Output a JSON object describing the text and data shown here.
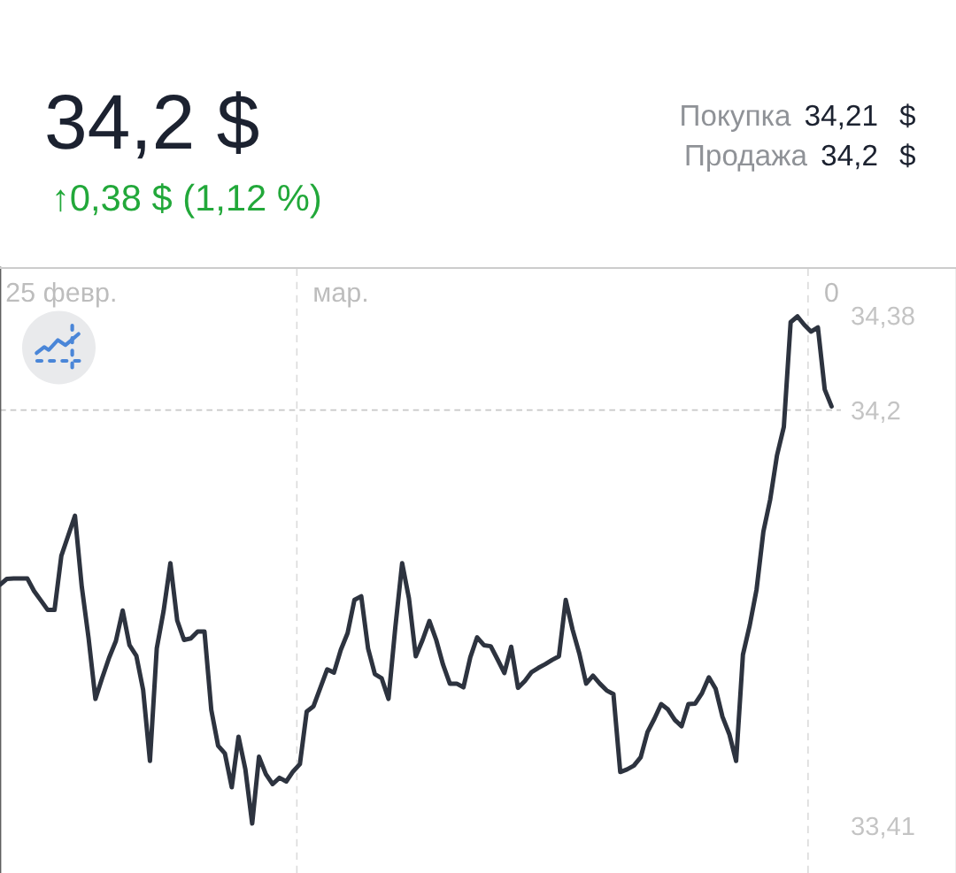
{
  "chart_data": {
    "type": "line",
    "title": "34,2 $",
    "subtitle": "↑0,38 $ (1,12 %)",
    "annotations": [
      "Покупка 34,21 $",
      "Продажа 34,2 $"
    ],
    "categories": [
      null,
      null,
      null,
      null,
      null,
      null,
      null,
      null,
      null,
      "25 февр.",
      null,
      null,
      null,
      null,
      null,
      null,
      null,
      null,
      null,
      null,
      null,
      null,
      null,
      null,
      null,
      null,
      null,
      null,
      null,
      null,
      null,
      null,
      null,
      null,
      null,
      null,
      null,
      null,
      null,
      null,
      null,
      null,
      null,
      null,
      null,
      null,
      null,
      null,
      null,
      null,
      "мар.",
      null,
      null,
      null,
      null,
      null,
      null,
      null,
      null,
      null,
      null,
      null,
      null,
      null,
      null,
      null,
      null,
      null,
      null,
      null,
      null,
      null,
      null,
      null,
      null,
      null,
      null,
      null,
      null,
      null,
      null,
      null,
      null,
      null,
      null,
      null,
      null,
      null,
      null,
      null,
      null,
      null,
      null,
      null,
      null,
      null,
      null,
      null,
      null,
      null,
      null,
      null,
      null,
      null,
      null,
      null,
      null,
      null,
      null,
      null,
      null,
      null,
      null,
      null,
      null,
      null,
      null,
      null,
      null,
      null,
      null,
      null,
      "0"
    ],
    "series": [
      {
        "color": "#2d333f",
        "values": [
          33.868,
          33.879,
          33.88,
          33.88,
          33.88,
          33.856,
          33.838,
          33.82,
          33.82,
          33.923,
          33.961,
          33.999,
          33.864,
          33.766,
          33.651,
          33.691,
          33.729,
          33.761,
          33.819,
          33.753,
          33.733,
          33.668,
          33.533,
          33.747,
          33.818,
          33.909,
          33.8,
          33.763,
          33.766,
          33.779,
          33.779,
          33.63,
          33.562,
          33.547,
          33.483,
          33.579,
          33.517,
          33.414,
          33.541,
          33.508,
          33.489,
          33.501,
          33.494,
          33.513,
          33.527,
          33.627,
          33.637,
          33.672,
          33.707,
          33.701,
          33.744,
          33.776,
          33.839,
          33.846,
          33.747,
          33.698,
          33.69,
          33.651,
          33.787,
          33.909,
          33.842,
          33.732,
          33.763,
          33.799,
          33.763,
          33.716,
          33.68,
          33.68,
          33.673,
          33.73,
          33.768,
          33.753,
          33.751,
          33.726,
          33.7,
          33.75,
          33.672,
          33.685,
          33.702,
          33.71,
          33.717,
          33.725,
          33.732,
          33.839,
          33.783,
          33.737,
          33.68,
          33.695,
          33.68,
          33.667,
          33.66,
          33.512,
          33.517,
          33.524,
          33.54,
          33.588,
          33.613,
          33.641,
          33.631,
          33.611,
          33.599,
          33.641,
          33.642,
          33.662,
          33.692,
          33.67,
          33.617,
          33.584,
          33.533,
          33.735,
          33.791,
          33.859,
          33.969,
          34.03,
          34.114,
          34.168,
          34.367,
          34.378,
          34.362,
          34.349,
          34.357,
          34.239,
          34.207
        ]
      }
    ],
    "ylim": [
      33.32,
      34.47
    ],
    "yticks": [
      {
        "value": 34.38,
        "label": "34,38"
      },
      {
        "value": 34.2,
        "label": "34,2"
      },
      {
        "value": 33.41,
        "label": "33,41"
      }
    ],
    "ref_lines": [
      {
        "axis": "y",
        "value": 34.2,
        "color": "#c8c8c8",
        "line_style": "dashed"
      }
    ],
    "grid": "x"
  }
}
